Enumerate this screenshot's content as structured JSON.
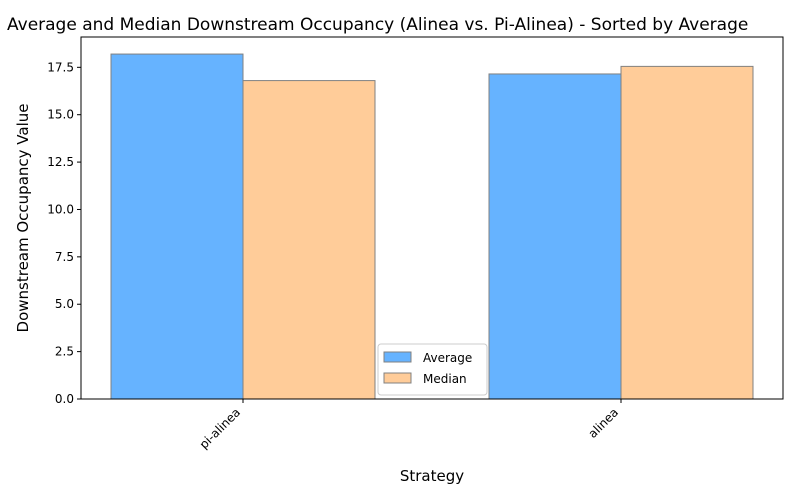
{
  "chart_data": {
    "type": "bar",
    "title": "Average and Median Downstream Occupancy (Alinea vs. Pi-Alinea) - Sorted by Average",
    "xlabel": "Strategy",
    "ylabel": "Downstream Occupancy Value",
    "categories": [
      "pi-alinea",
      "alinea"
    ],
    "series": [
      {
        "name": "Average",
        "values": [
          18.2,
          17.15
        ],
        "color": "#66b3ff"
      },
      {
        "name": "Median",
        "values": [
          16.8,
          17.55
        ],
        "color": "#ffcc99"
      }
    ],
    "ylim": [
      0,
      19.1
    ],
    "yticks": [
      "0.0",
      "2.5",
      "5.0",
      "7.5",
      "10.0",
      "12.5",
      "15.0",
      "17.5"
    ],
    "grid": false,
    "legend_position": "lower-center",
    "bar_edge_color": "#808080"
  }
}
